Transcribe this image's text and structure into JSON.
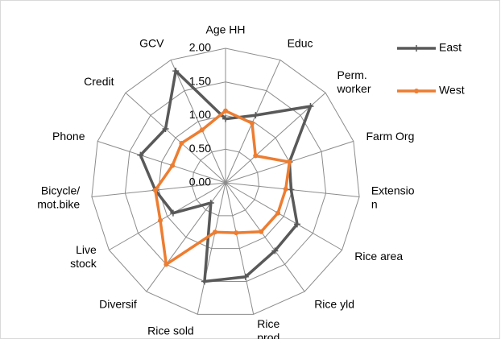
{
  "chart_data": {
    "type": "radar",
    "categories": [
      "Age HH",
      "Educ",
      "Perm.\nworker",
      "Farm Org",
      "Extensio\nn",
      "Rice area",
      "Rice yld",
      "Rice\nprod",
      "Rice sold",
      "Diversif",
      "Live\nstock",
      "Bicycle/\nmot.bike",
      "Phone",
      "Credit",
      "GCV"
    ],
    "series": [
      {
        "name": "East",
        "color": "#595959",
        "values": [
          0.95,
          1.1,
          1.7,
          1.0,
          0.98,
          1.23,
          1.25,
          1.43,
          1.5,
          0.37,
          0.9,
          1.05,
          1.33,
          1.2,
          1.82
        ]
      },
      {
        "name": "West",
        "color": "#ED7D31",
        "values": [
          1.07,
          0.97,
          0.6,
          1.0,
          0.9,
          0.9,
          0.9,
          0.76,
          0.75,
          1.5,
          1.12,
          1.05,
          0.83,
          0.88,
          0.86
        ]
      }
    ],
    "ylim": [
      0,
      2
    ],
    "yticks": [
      {
        "value": 0,
        "label": "0.00"
      },
      {
        "value": 0.5,
        "label": "0.50"
      },
      {
        "value": 1,
        "label": "1.00"
      },
      {
        "value": 1.5,
        "label": "1.50"
      },
      {
        "value": 2,
        "label": "2.00"
      }
    ],
    "grid": true,
    "legend": "top-right"
  }
}
